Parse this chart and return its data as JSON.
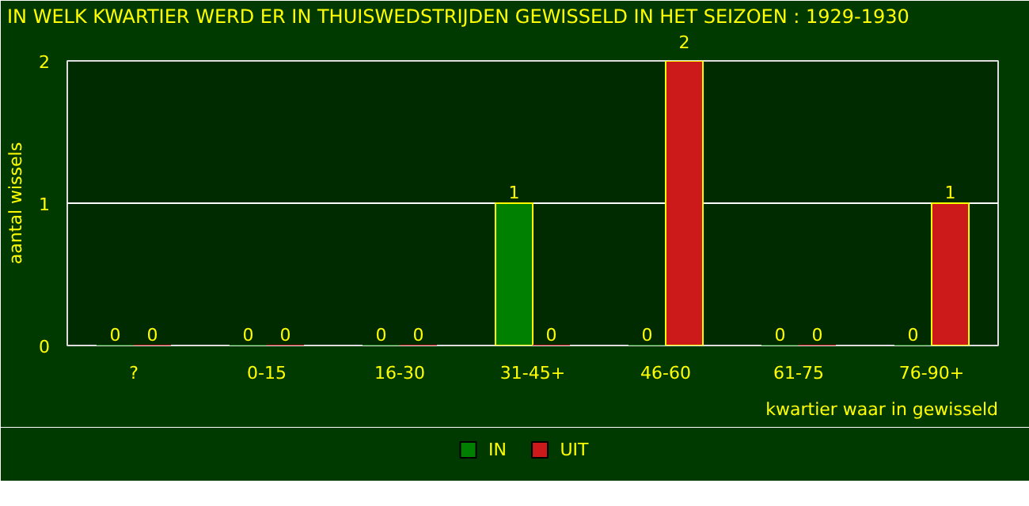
{
  "chart_data": {
    "type": "bar",
    "title": "IN WELK KWARTIER WERD ER IN THUISWEDSTRIJDEN GEWISSELD IN HET SEIZOEN : 1929-1930",
    "xlabel": "kwartier waar in gewisseld",
    "ylabel": "aantal wissels",
    "categories": [
      "?",
      "0-15",
      "16-30",
      "31-45+",
      "46-60",
      "61-75",
      "76-90+"
    ],
    "series": [
      {
        "name": "IN",
        "color": "#008000",
        "values": [
          0,
          0,
          0,
          1,
          0,
          0,
          0
        ]
      },
      {
        "name": "UIT",
        "color": "#cc1a1a",
        "values": [
          0,
          0,
          0,
          0,
          2,
          0,
          1
        ]
      }
    ],
    "ylim": [
      0,
      2
    ],
    "yticks": [
      0,
      1,
      2
    ],
    "grid": "y",
    "legend": "bottom",
    "data_labels": true
  }
}
